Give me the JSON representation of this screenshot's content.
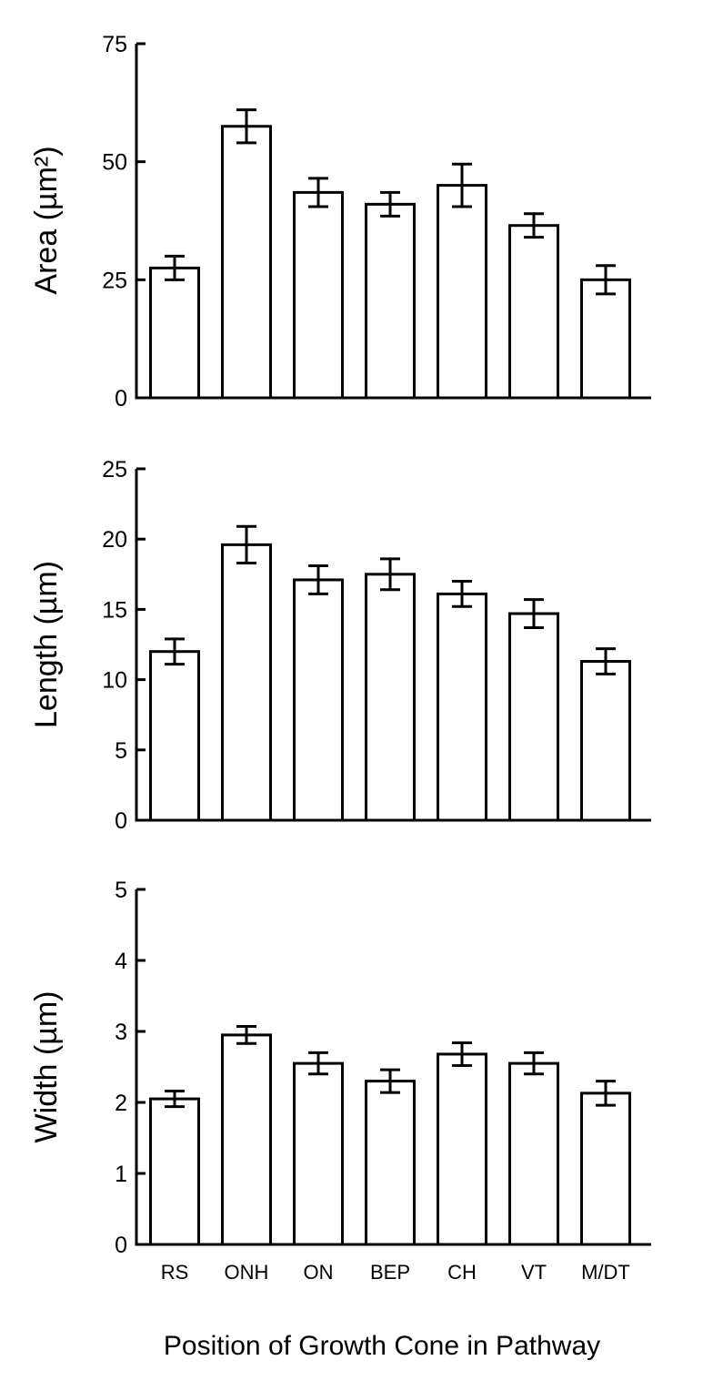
{
  "chart_data": [
    {
      "type": "bar",
      "ylabel": "Area (µm²)",
      "categories": [
        "RS",
        "ONH",
        "ON",
        "BEP",
        "CH",
        "VT",
        "M/DT"
      ],
      "values": [
        27.5,
        57.5,
        43.5,
        41,
        45,
        36.5,
        25
      ],
      "errors": [
        2.5,
        3.5,
        3,
        2.5,
        4.5,
        2.5,
        3
      ],
      "ylim": [
        0,
        75
      ],
      "yticks": [
        0,
        25,
        50,
        75
      ],
      "grid": false
    },
    {
      "type": "bar",
      "ylabel": "Length (µm)",
      "categories": [
        "RS",
        "ONH",
        "ON",
        "BEP",
        "CH",
        "VT",
        "M/DT"
      ],
      "values": [
        12,
        19.6,
        17.1,
        17.5,
        16.1,
        14.7,
        11.3
      ],
      "errors": [
        0.9,
        1.3,
        1.0,
        1.1,
        0.9,
        1.0,
        0.9
      ],
      "ylim": [
        0,
        25
      ],
      "yticks": [
        0,
        5,
        10,
        15,
        20,
        25
      ],
      "grid": false
    },
    {
      "type": "bar",
      "ylabel": "Width (µm)",
      "categories": [
        "RS",
        "ONH",
        "ON",
        "BEP",
        "CH",
        "VT",
        "M/DT"
      ],
      "values": [
        2.05,
        2.95,
        2.55,
        2.3,
        2.68,
        2.55,
        2.13
      ],
      "errors": [
        0.11,
        0.12,
        0.15,
        0.16,
        0.16,
        0.15,
        0.17
      ],
      "ylim": [
        0,
        5
      ],
      "yticks": [
        0,
        1,
        2,
        3,
        4,
        5
      ],
      "grid": false
    }
  ],
  "xlabel": "Position of Growth Cone in Pathway"
}
